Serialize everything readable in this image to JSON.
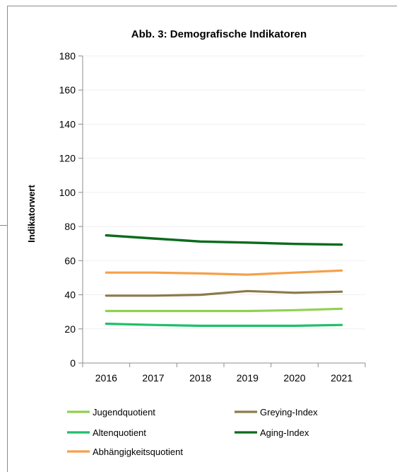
{
  "chart_data": {
    "type": "line",
    "title": "Abb. 3: Demografische Indikatoren",
    "xlabel": "",
    "ylabel": "Indikatorwert",
    "x": [
      "2016",
      "2017",
      "2018",
      "2019",
      "2020",
      "2021"
    ],
    "ylim": [
      0,
      180
    ],
    "yticks": [
      0,
      20,
      40,
      60,
      80,
      100,
      120,
      140,
      160,
      180
    ],
    "grid": true,
    "legend_position": "bottom",
    "series": [
      {
        "name": "Jugendquotient",
        "color": "#92d050",
        "values": [
          30.5,
          30.5,
          30.5,
          30.5,
          31.0,
          31.8
        ]
      },
      {
        "name": "Greying-Index",
        "color": "#8c7a4a",
        "values": [
          39.5,
          39.5,
          40.0,
          42.2,
          41.2,
          41.8
        ]
      },
      {
        "name": "Altenquotient",
        "color": "#1fbf6a",
        "values": [
          23.0,
          22.3,
          21.8,
          21.8,
          21.8,
          22.3
        ]
      },
      {
        "name": "Aging-Index",
        "color": "#0b6b1c",
        "values": [
          74.8,
          73.0,
          71.2,
          70.6,
          69.8,
          69.4
        ]
      },
      {
        "name": "Abhängigkeitsquotient",
        "color": "#f5a04a",
        "values": [
          53.0,
          53.0,
          52.5,
          51.8,
          53.0,
          54.2
        ]
      }
    ]
  }
}
